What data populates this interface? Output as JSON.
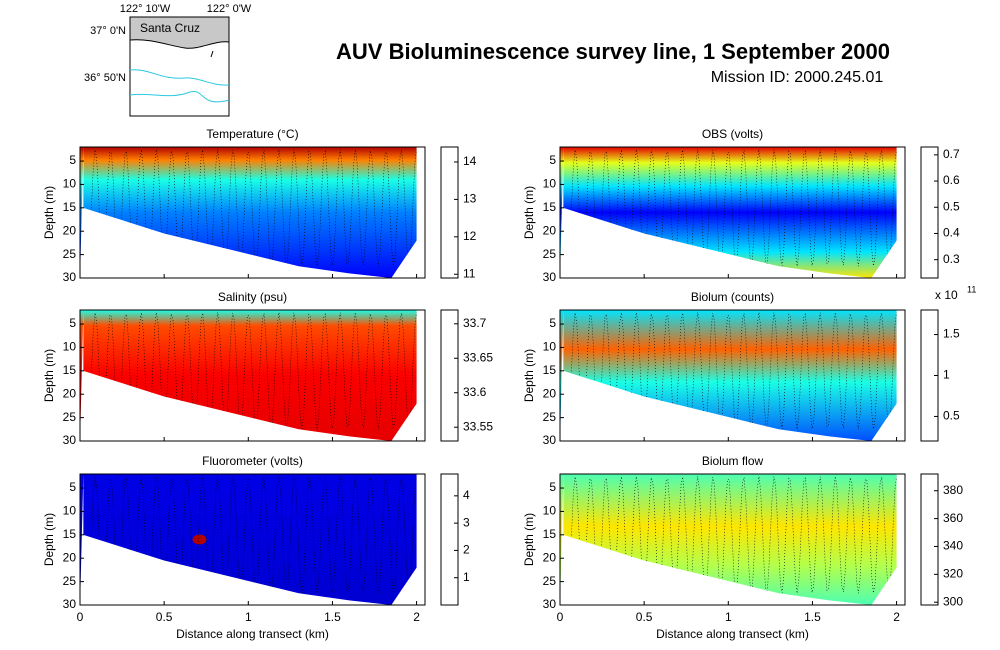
{
  "header": {
    "title": "AUV Bioluminescence survey line, 1 September 2000",
    "subtitle": "Mission ID: 2000.245.01"
  },
  "map": {
    "x_labels": [
      "122° 10'W",
      "122° 0'W"
    ],
    "y_labels": [
      "37° 0'N",
      "36° 50'N"
    ],
    "place": "Santa Cruz"
  },
  "chart_data": [
    {
      "type": "heatmap",
      "title": "Temperature (°C)",
      "y_label": "Depth (m)",
      "xlim": [
        0,
        2.05
      ],
      "xticks": [
        0,
        0.5,
        1,
        1.5,
        2
      ],
      "ylim": [
        2,
        30
      ],
      "yticks": [
        5,
        10,
        15,
        20,
        25,
        30
      ],
      "clim": [
        10.9,
        14.4
      ],
      "cticks": [
        11,
        12,
        13,
        14
      ]
    },
    {
      "type": "heatmap",
      "title": "OBS (volts)",
      "y_label": "Depth (m)",
      "xlim": [
        0,
        2.05
      ],
      "xticks": [
        0,
        0.5,
        1,
        1.5,
        2
      ],
      "ylim": [
        2,
        30
      ],
      "yticks": [
        5,
        10,
        15,
        20,
        25,
        30
      ],
      "clim": [
        0.23,
        0.73
      ],
      "cticks": [
        0.3,
        0.4,
        0.5,
        0.6,
        0.7
      ]
    },
    {
      "type": "heatmap",
      "title": "Salinity (psu)",
      "y_label": "Depth (m)",
      "xlim": [
        0,
        2.05
      ],
      "xticks": [
        0,
        0.5,
        1,
        1.5,
        2
      ],
      "ylim": [
        2,
        30
      ],
      "yticks": [
        5,
        10,
        15,
        20,
        25,
        30
      ],
      "clim": [
        33.53,
        33.72
      ],
      "cticks": [
        33.55,
        33.6,
        33.65,
        33.7
      ]
    },
    {
      "type": "heatmap",
      "title": "Biolum (counts)",
      "y_label": "Depth (m)",
      "xlim": [
        0,
        2.05
      ],
      "xticks": [
        0,
        0.5,
        1,
        1.5,
        2
      ],
      "ylim": [
        2,
        30
      ],
      "yticks": [
        5,
        10,
        15,
        20,
        25,
        30
      ],
      "clim": [
        0.2,
        1.8
      ],
      "cticks": [
        0.5,
        1,
        1.5
      ],
      "colorbar_scale": {
        "base": "x 10",
        "exponent": "11"
      }
    },
    {
      "type": "heatmap",
      "title": "Fluorometer (volts)",
      "y_label": "Depth (m)",
      "x_label": "Distance along transect (km)",
      "xlim": [
        0,
        2.05
      ],
      "xticks": [
        0,
        0.5,
        1,
        1.5,
        2
      ],
      "ylim": [
        2,
        30
      ],
      "yticks": [
        5,
        10,
        15,
        20,
        25,
        30
      ],
      "clim": [
        0,
        4.8
      ],
      "cticks": [
        1,
        2,
        3,
        4
      ]
    },
    {
      "type": "heatmap",
      "title": "Biolum flow",
      "y_label": "Depth (m)",
      "x_label": "Distance along transect (km)",
      "xlim": [
        0,
        2.05
      ],
      "xticks": [
        0,
        0.5,
        1,
        1.5,
        2
      ],
      "ylim": [
        2,
        30
      ],
      "yticks": [
        5,
        10,
        15,
        20,
        25,
        30
      ],
      "clim": [
        298,
        392
      ],
      "cticks": [
        300,
        320,
        340,
        360,
        380
      ]
    }
  ]
}
